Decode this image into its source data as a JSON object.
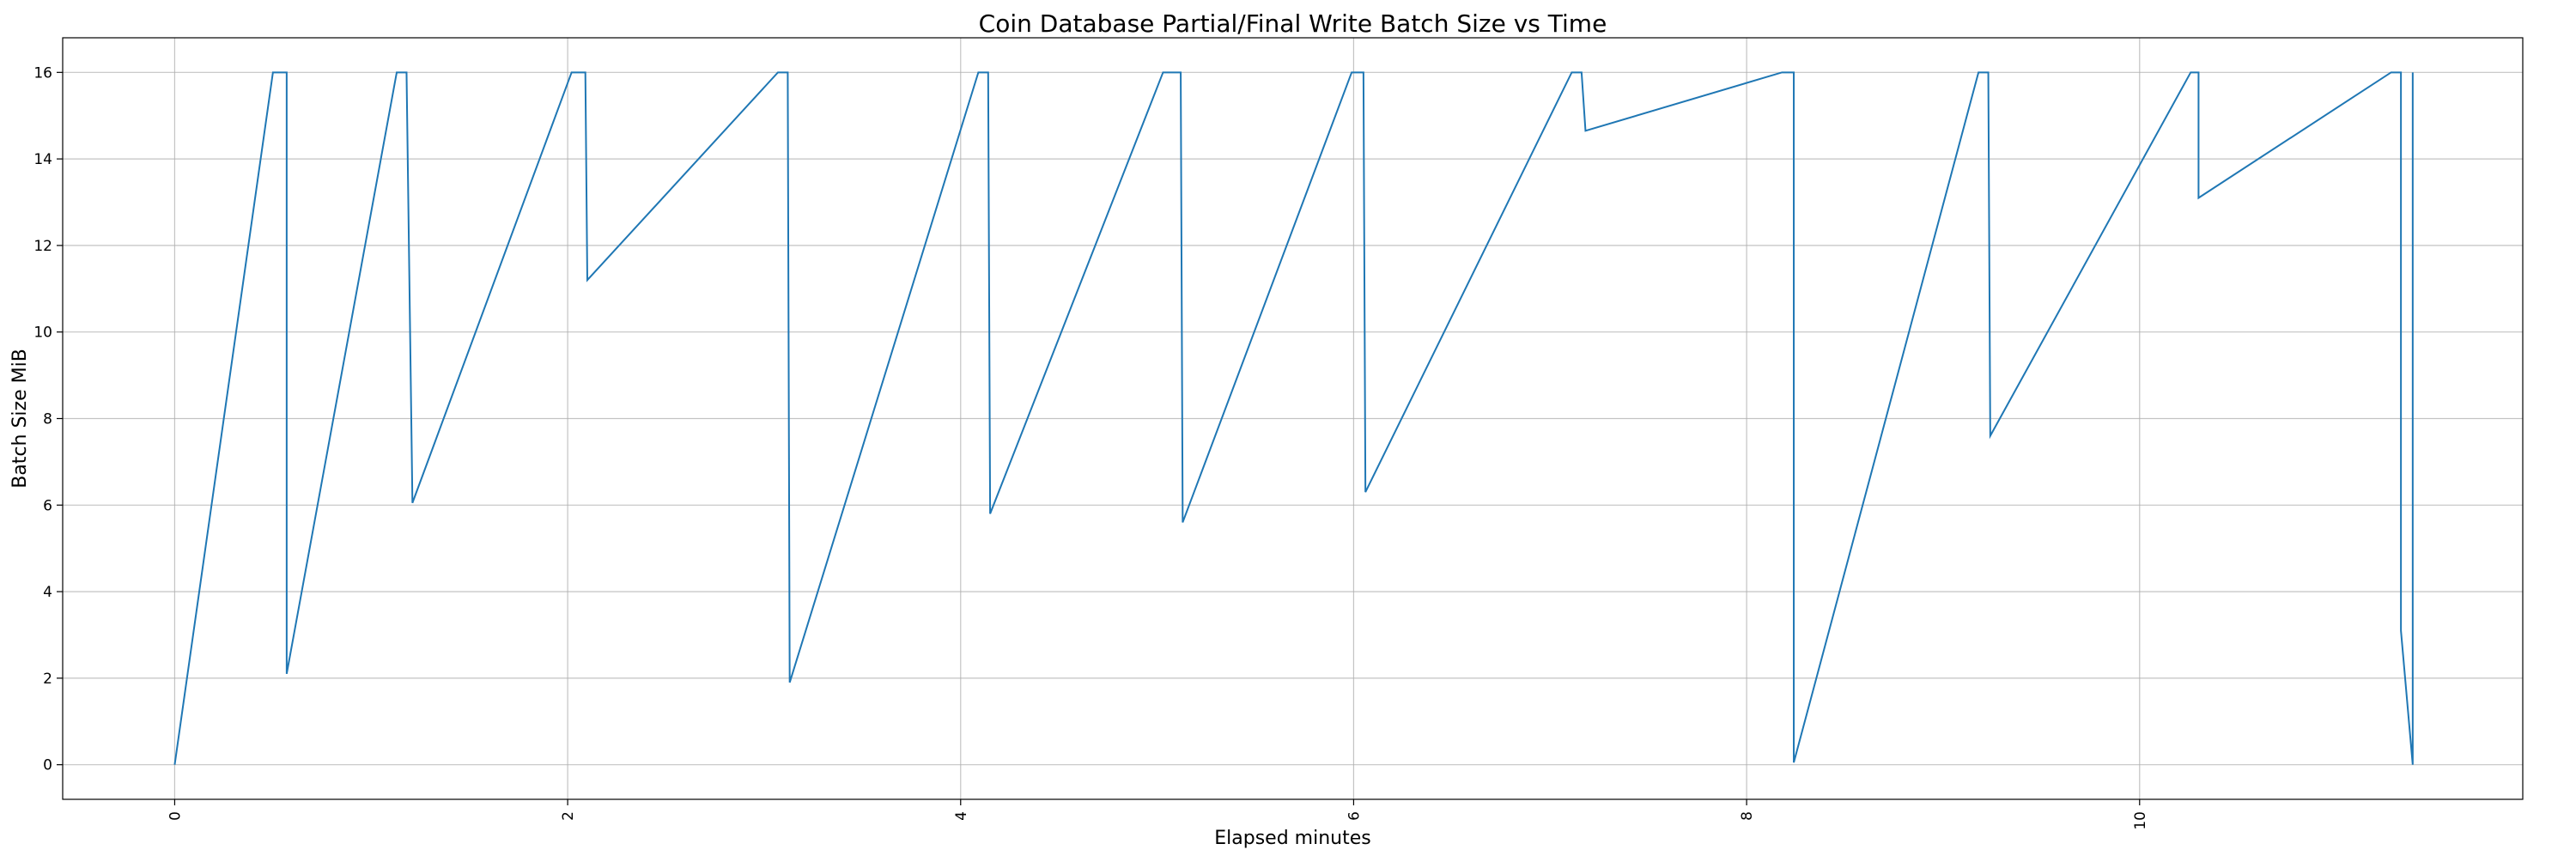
{
  "chart_data": {
    "type": "line",
    "title": "Coin Database Partial/Final Write Batch Size vs Time",
    "xlabel": "Elapsed minutes",
    "ylabel": "Batch Size MiB",
    "xlim": [
      -0.57,
      11.95
    ],
    "ylim": [
      -0.8,
      16.8
    ],
    "xticks": [
      0,
      2,
      4,
      6,
      8,
      10
    ],
    "xtick_labels": [
      "0",
      "2",
      "4",
      "6",
      "8",
      "10"
    ],
    "xtick_rotation": 90,
    "yticks": [
      0,
      2,
      4,
      6,
      8,
      10,
      12,
      14,
      16
    ],
    "ytick_labels": [
      "0",
      "2",
      "4",
      "6",
      "8",
      "10",
      "12",
      "14",
      "16"
    ],
    "grid": true,
    "series": [
      {
        "color": "#1f77b4",
        "x": [
          0.0,
          0.5,
          0.57,
          0.57,
          1.13,
          1.18,
          1.21,
          2.02,
          2.09,
          2.1,
          3.07,
          3.12,
          3.13,
          4.09,
          4.14,
          4.15,
          5.03,
          5.12,
          5.13,
          5.99,
          6.05,
          6.06,
          7.11,
          7.16,
          7.18,
          8.18,
          8.24,
          8.24,
          9.18,
          9.23,
          9.24,
          10.26,
          10.3,
          10.3,
          11.28,
          11.33,
          11.33,
          11.39,
          11.39
        ],
        "y": [
          0.0,
          16.0,
          16.0,
          2.1,
          16.0,
          16.0,
          6.05,
          16.0,
          16.0,
          11.2,
          16.0,
          16.0,
          1.9,
          16.0,
          16.0,
          5.8,
          16.0,
          16.0,
          5.6,
          16.0,
          16.0,
          6.3,
          16.0,
          16.0,
          14.65,
          16.0,
          16.0,
          0.05,
          16.0,
          16.0,
          7.6,
          16.0,
          16.0,
          13.1,
          16.0,
          16.0,
          3.1,
          0.0,
          16.0
        ]
      }
    ]
  }
}
